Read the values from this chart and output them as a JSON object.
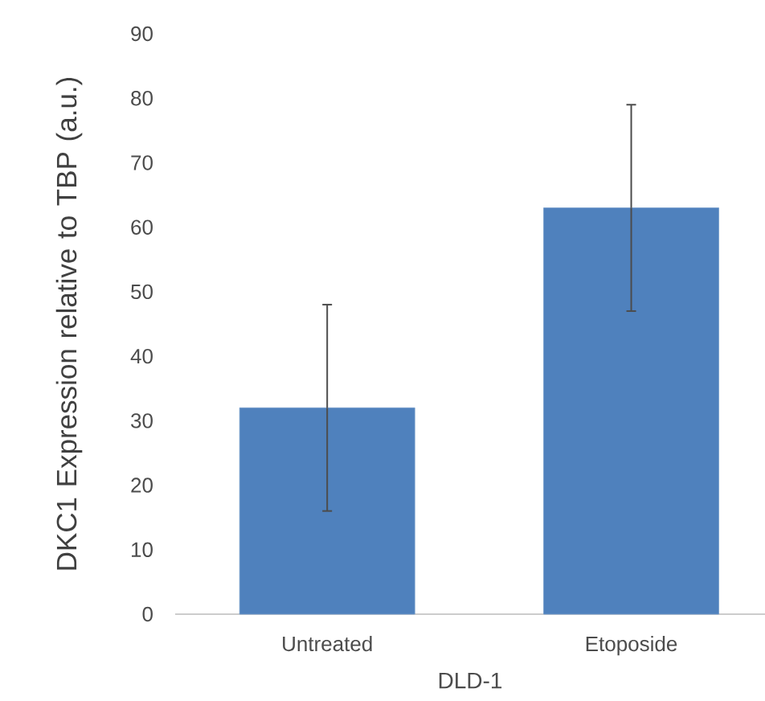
{
  "chart_data": {
    "type": "bar",
    "xlabel": "DLD-1",
    "ylabel": "DKC1 Expression relative to TBP (a.u.)",
    "categories": [
      "Untreated",
      "Etoposide"
    ],
    "values": [
      32,
      63
    ],
    "errors": [
      16,
      16
    ],
    "color": "#4f81bd",
    "ylim": [
      0,
      90
    ],
    "yticks": [
      0,
      10,
      20,
      30,
      40,
      50,
      60,
      70,
      80,
      90
    ]
  }
}
